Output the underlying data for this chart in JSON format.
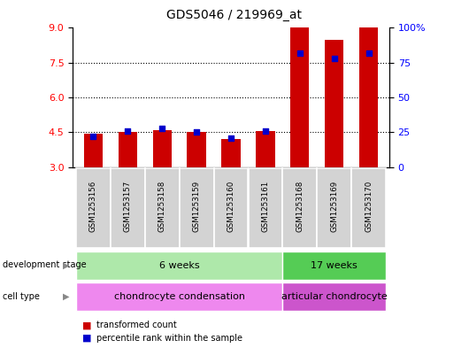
{
  "title": "GDS5046 / 219969_at",
  "samples": [
    "GSM1253156",
    "GSM1253157",
    "GSM1253158",
    "GSM1253159",
    "GSM1253160",
    "GSM1253161",
    "GSM1253168",
    "GSM1253169",
    "GSM1253170"
  ],
  "transformed_count": [
    4.45,
    4.5,
    4.6,
    4.5,
    4.2,
    4.55,
    9.0,
    8.5,
    9.0
  ],
  "percentile_rank": [
    22,
    26,
    28,
    25,
    21,
    26,
    82,
    78,
    82
  ],
  "y_min": 3,
  "y_max": 9,
  "y_ticks": [
    3,
    4.5,
    6,
    7.5,
    9
  ],
  "right_y_ticks": [
    0,
    25,
    50,
    75,
    100
  ],
  "bar_color": "#cc0000",
  "blue_color": "#0000cc",
  "dev_stage_groups": [
    {
      "label": "6 weeks",
      "start": 0,
      "end": 5,
      "color": "#aee8aa"
    },
    {
      "label": "17 weeks",
      "start": 6,
      "end": 8,
      "color": "#55cc55"
    }
  ],
  "cell_type_groups": [
    {
      "label": "chondrocyte condensation",
      "start": 0,
      "end": 5,
      "color": "#ee88ee"
    },
    {
      "label": "articular chondrocyte",
      "start": 6,
      "end": 8,
      "color": "#cc55cc"
    }
  ],
  "legend_items": [
    {
      "label": "transformed count",
      "color": "#cc0000"
    },
    {
      "label": "percentile rank within the sample",
      "color": "#0000cc"
    }
  ],
  "bar_width": 0.55
}
